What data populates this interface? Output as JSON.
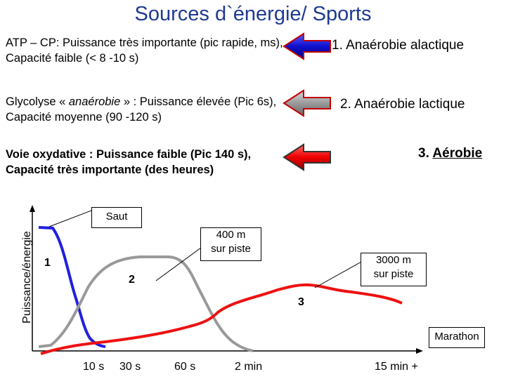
{
  "title": "Sources d`énergie/ Sports",
  "rows": [
    {
      "description": "ATP – CP: Puissance très importante (pic rapide, ms), Capacité faible (< 8 -10 s)",
      "label": "1. Anaérobie alactique",
      "arrow_color": "#1f1fd6"
    },
    {
      "description_parts": [
        "Glycolyse « ",
        "anaérobie",
        " » : Puissance élevée (Pic 6s), Capacité moyenne (90 -120 s)"
      ],
      "label": "2. Anaérobie lactique",
      "arrow_color": "#999999"
    },
    {
      "description": "Voie oxydative : Puissance faible (Pic 140 s), Capacité très importante (des heures)",
      "label_prefix": "3. ",
      "label_underlined": "Aérobie",
      "arrow_color": "#ee1111"
    }
  ],
  "diagram": {
    "y_axis_label": "Puissance/énergie",
    "x_ticks": [
      "10 s",
      "30 s",
      "60 s",
      "2 min",
      "15 min +"
    ],
    "curve_labels": {
      "c1": "1",
      "c2": "2",
      "c3": "3"
    },
    "callouts": {
      "saut": "Saut",
      "piste400_line1": "400 m",
      "piste400_line2": "sur piste",
      "piste3000_line1": "3000 m",
      "piste3000_line2": "sur piste",
      "marathon": "Marathon"
    },
    "curve_colors": {
      "anaerobie_alactique": "#1f1fd6",
      "anaerobie_lactique": "#999999",
      "aerobie": "#ee1111"
    }
  }
}
